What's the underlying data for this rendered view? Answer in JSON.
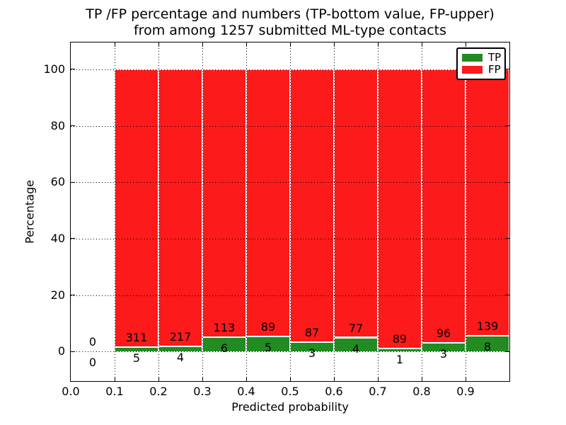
{
  "chart_data": {
    "type": "bar",
    "stacked": true,
    "normalized": "each drawn bar spans 0-100% of its bin total; TP on bottom, FP on top; counts shown as text labels",
    "title_lines": [
      "TP /FP percentage and numbers (TP-bottom value, FP-upper)",
      "from among 1257 submitted ML-type contacts"
    ],
    "xlabel": "Predicted probability",
    "ylabel": "Percentage",
    "xlim": [
      0.0,
      1.0
    ],
    "ylim": [
      -10.5,
      109.5
    ],
    "xtick_labels": [
      "0.0",
      "0.1",
      "0.2",
      "0.3",
      "0.4",
      "0.5",
      "0.6",
      "0.7",
      "0.8",
      "0.9"
    ],
    "ytick_values": [
      0,
      20,
      40,
      60,
      80,
      100
    ],
    "grid": "dotted black, both axes, drawn above bars",
    "bar_width": 0.1,
    "categories": [
      "0.0-0.1",
      "0.1-0.2",
      "0.2-0.3",
      "0.3-0.4",
      "0.4-0.5",
      "0.5-0.6",
      "0.6-0.7",
      "0.7-0.8",
      "0.8-0.9",
      "0.9-1.0"
    ],
    "series": [
      {
        "name": "TP",
        "color": "#228b22",
        "values": [
          0,
          5,
          4,
          6,
          5,
          3,
          4,
          1,
          3,
          8
        ]
      },
      {
        "name": "FP",
        "color": "#fc1a1a",
        "values": [
          0,
          311,
          217,
          113,
          89,
          87,
          77,
          89,
          96,
          139
        ]
      }
    ],
    "bins": [
      {
        "x_start": 0.0,
        "x_end": 0.1,
        "tp": 0,
        "fp": 0
      },
      {
        "x_start": 0.1,
        "x_end": 0.2,
        "tp": 5,
        "fp": 311
      },
      {
        "x_start": 0.2,
        "x_end": 0.3,
        "tp": 4,
        "fp": 217
      },
      {
        "x_start": 0.3,
        "x_end": 0.4,
        "tp": 6,
        "fp": 113
      },
      {
        "x_start": 0.4,
        "x_end": 0.5,
        "tp": 5,
        "fp": 89
      },
      {
        "x_start": 0.5,
        "x_end": 0.6,
        "tp": 3,
        "fp": 87
      },
      {
        "x_start": 0.6,
        "x_end": 0.7,
        "tp": 4,
        "fp": 77
      },
      {
        "x_start": 0.7,
        "x_end": 0.8,
        "tp": 1,
        "fp": 89
      },
      {
        "x_start": 0.8,
        "x_end": 0.9,
        "tp": 3,
        "fp": 96
      },
      {
        "x_start": 0.9,
        "x_end": 1.0,
        "tp": 8,
        "fp": 139
      }
    ],
    "legend": {
      "position": "upper right",
      "entries": [
        {
          "label": "TP",
          "color": "#228b22"
        },
        {
          "label": "FP",
          "color": "#fc1a1a"
        }
      ]
    }
  },
  "colors": {
    "tp_green": "#228b22",
    "fp_red": "#fc1a1a",
    "bar_edge": "#ffffff",
    "grid": "#000000",
    "axis": "#000000",
    "text": "#000000",
    "background": "#ffffff"
  }
}
